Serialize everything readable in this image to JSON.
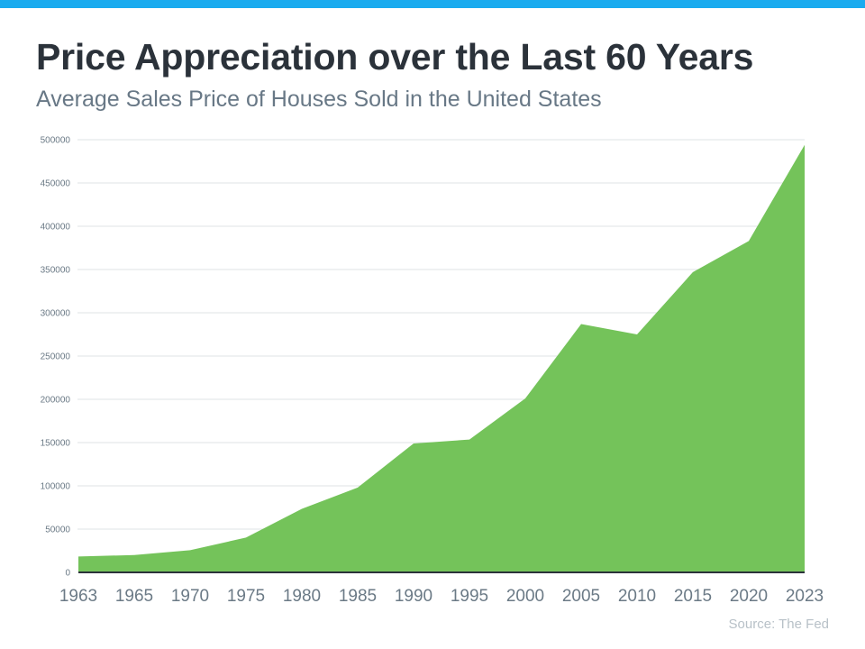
{
  "header": {
    "title": "Price Appreciation over the Last 60 Years",
    "subtitle": "Average Sales Price of Houses Sold in the United States",
    "source": "Source: The Fed",
    "accent_color": "#1aabef"
  },
  "chart_data": {
    "type": "area",
    "title": "Price Appreciation over the Last 60 Years",
    "subtitle": "Average Sales Price of Houses Sold in the United States",
    "xlabel": "",
    "ylabel": "",
    "categories": [
      "1963",
      "1965",
      "1970",
      "1975",
      "1980",
      "1985",
      "1990",
      "1995",
      "2000",
      "2005",
      "2010",
      "2015",
      "2020",
      "2023"
    ],
    "values": [
      18300,
      20100,
      25700,
      40200,
      73400,
      98000,
      149000,
      153500,
      201000,
      287000,
      275000,
      347000,
      383000,
      494000
    ],
    "ylim": [
      0,
      500000
    ],
    "yticks": [
      "0",
      "50000",
      "100000",
      "150000",
      "200000",
      "250000",
      "300000",
      "350000",
      "400000",
      "450000",
      "500000"
    ],
    "grid": true,
    "legend": "none",
    "fill_color": "#74c35a",
    "baseline_color": "#2b323a"
  }
}
